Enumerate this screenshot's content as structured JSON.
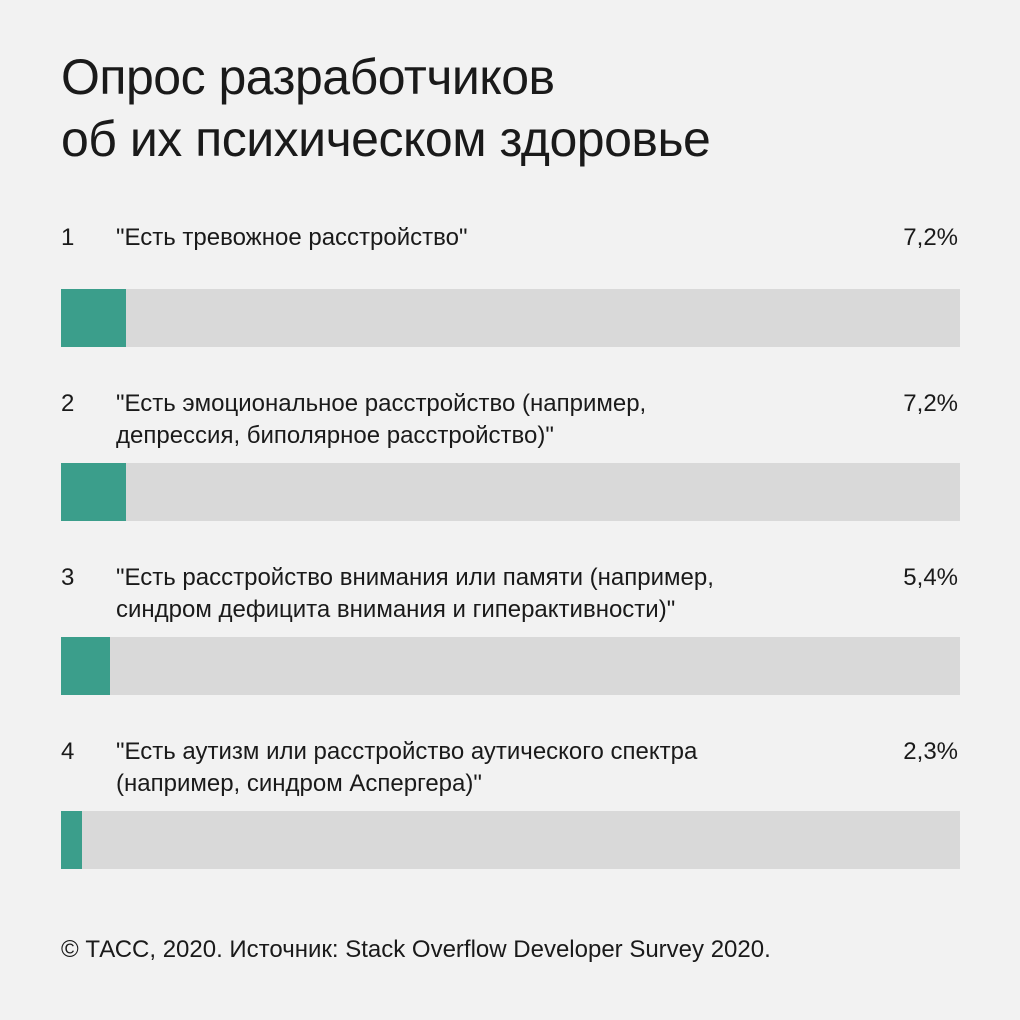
{
  "title": "Опрос разработчиков\nоб их психическом здоровье",
  "colors": {
    "background": "#f2f2f2",
    "bar_fill": "#3b9e8b",
    "bar_track": "#d9d9d9",
    "text": "#1a1a1a"
  },
  "chart_data": {
    "type": "bar",
    "orientation": "horizontal",
    "categories": [
      "\"Есть тревожное расстройство\"",
      "\"Есть эмоциональное расстройство (например,\nдепрессия, биполярное расстройство)\"",
      "\"Есть расстройство внимания или памяти (например,\nсиндром дефицита внимания и гиперактивности)\"",
      "\"Есть аутизм или расстройство аутического спектра\n(например, синдром Аспергера)\""
    ],
    "ranks": [
      "1",
      "2",
      "3",
      "4"
    ],
    "values": [
      7.2,
      7.2,
      5.4,
      2.3
    ],
    "value_labels": [
      "7,2%",
      "7,2%",
      "5,4%",
      "2,3%"
    ],
    "xlim": [
      0,
      100
    ],
    "grid": false
  },
  "footer": "© ТАСС, 2020. Источник: Stack Overflow Developer Survey 2020."
}
